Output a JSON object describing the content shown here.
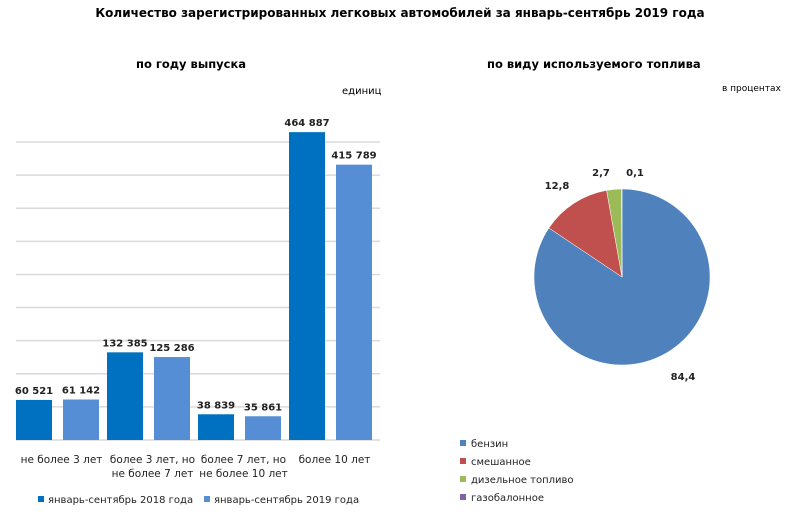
{
  "title": "Количество  зарегистрированных  легковых автомобилей  за январь-сентябрь  2019 года",
  "chart_data": [
    {
      "type": "bar",
      "title": "по году выпуска",
      "unit_label": "единиц",
      "categories": [
        [
          "не более 3 лет"
        ],
        [
          "более 3 лет, но",
          "не более 7 лет"
        ],
        [
          "более 7 лет, но",
          "не более 10 лет"
        ],
        [
          "более 10 лет"
        ]
      ],
      "series": [
        {
          "name": "январь-сентябрь  2018 года",
          "color": "#0070c0",
          "values": [
            60521,
            132385,
            38839,
            464887
          ],
          "labels": [
            "60 521",
            "132 385",
            "38 839",
            "464 887"
          ]
        },
        {
          "name": "январь-сентябрь  2019 года",
          "color": "#558ed5",
          "values": [
            61142,
            125286,
            35861,
            415789
          ],
          "labels": [
            "61 142",
            "125 286",
            "35 861",
            "415 789"
          ]
        }
      ],
      "ylim": [
        0,
        450000
      ],
      "grid": true,
      "legend": "bottom"
    },
    {
      "type": "pie",
      "title": "по виду используемого  топлива",
      "unit_label": "в процентах",
      "slices": [
        {
          "name": "бензин",
          "value": 84.4,
          "label": "84,4",
          "color": "#4f81bd"
        },
        {
          "name": "смешанное",
          "value": 12.8,
          "label": "12,8",
          "color": "#c0504d"
        },
        {
          "name": "дизельное топливо",
          "value": 2.7,
          "label": "2,7",
          "color": "#9bbb59"
        },
        {
          "name": "газобалонное",
          "value": 0.1,
          "label": "0,1",
          "color": "#8064a2"
        }
      ],
      "legend": "bottom-left"
    }
  ]
}
